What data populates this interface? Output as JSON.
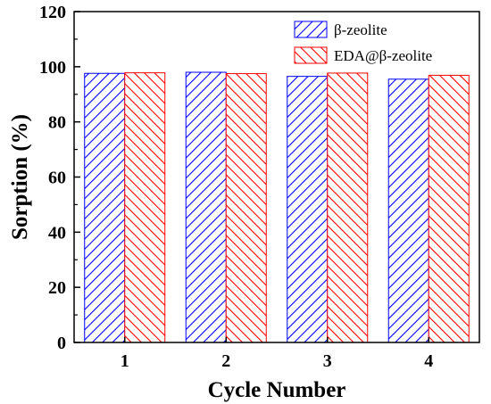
{
  "chart_data": {
    "type": "bar",
    "categories": [
      "1",
      "2",
      "3",
      "4"
    ],
    "series": [
      {
        "name": "β-zeolite",
        "values": [
          97.6,
          98.0,
          96.5,
          95.5
        ],
        "color": "#0000ff",
        "hatch": "diagonal-up"
      },
      {
        "name": "EDA@β-zeolite",
        "values": [
          97.8,
          97.5,
          97.7,
          96.9
        ],
        "color": "#ff0000",
        "hatch": "diagonal-down"
      }
    ],
    "xlabel": "Cycle Number",
    "ylabel": "Sorption (%)",
    "ylim": [
      0,
      120
    ],
    "yticks": [
      0,
      20,
      40,
      60,
      80,
      100,
      120
    ],
    "legend_position": "top-right",
    "grid": false
  }
}
